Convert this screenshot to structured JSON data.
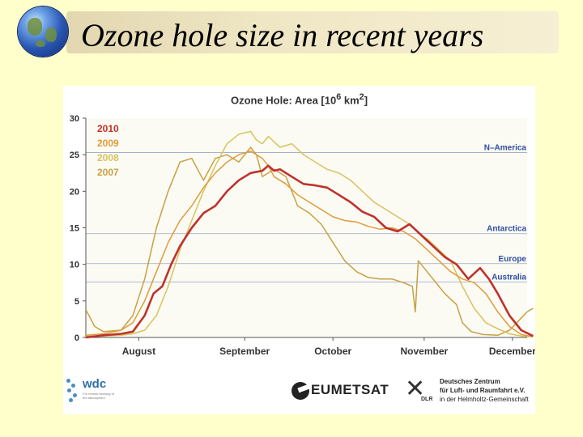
{
  "slide": {
    "title": "Ozone hole size in recent years",
    "accent": "#ffffcc"
  },
  "chart_data": {
    "type": "line",
    "title": "Ozone Hole: Area [10⁶ km²]",
    "xlabel": "",
    "ylabel": "",
    "ylim": [
      0,
      30
    ],
    "yticks": [
      0,
      5,
      10,
      15,
      20,
      25,
      30
    ],
    "xlim": [
      0,
      150
    ],
    "month_labels": [
      {
        "label": "August",
        "day": 18
      },
      {
        "label": "September",
        "day": 54
      },
      {
        "label": "October",
        "day": 84
      },
      {
        "label": "November",
        "day": 115
      },
      {
        "label": "December",
        "day": 145
      }
    ],
    "legend_position": "top-left",
    "reference_lines": [
      {
        "name": "N–America",
        "value": 25.3
      },
      {
        "name": "Antarctica",
        "value": 14.2
      },
      {
        "name": "Europe",
        "value": 10.1
      },
      {
        "name": "Australia",
        "value": 7.6
      }
    ],
    "series": [
      {
        "name": "2010",
        "color": "#c0312b",
        "width": 2.6,
        "points": [
          [
            0,
            0
          ],
          [
            6,
            0.3
          ],
          [
            12,
            0.5
          ],
          [
            16,
            0.8
          ],
          [
            20,
            3
          ],
          [
            23,
            6
          ],
          [
            26,
            7
          ],
          [
            29,
            10
          ],
          [
            32,
            12.5
          ],
          [
            36,
            15
          ],
          [
            40,
            17
          ],
          [
            44,
            18
          ],
          [
            48,
            20
          ],
          [
            52,
            21.5
          ],
          [
            56,
            22.5
          ],
          [
            60,
            22.8
          ],
          [
            62,
            23.5
          ],
          [
            64,
            22.8
          ],
          [
            66,
            23
          ],
          [
            70,
            22
          ],
          [
            74,
            21
          ],
          [
            78,
            20.8
          ],
          [
            82,
            20.5
          ],
          [
            86,
            19.5
          ],
          [
            90,
            18.5
          ],
          [
            94,
            17.2
          ],
          [
            98,
            16.5
          ],
          [
            102,
            15
          ],
          [
            106,
            14.5
          ],
          [
            110,
            15.5
          ],
          [
            114,
            14
          ],
          [
            118,
            12.5
          ],
          [
            122,
            11
          ],
          [
            126,
            10
          ],
          [
            130,
            8
          ],
          [
            134,
            9.5
          ],
          [
            137,
            8
          ],
          [
            140,
            6
          ],
          [
            144,
            3
          ],
          [
            148,
            1
          ],
          [
            152,
            0.2
          ]
        ]
      },
      {
        "name": "2009",
        "color": "#e09b3a",
        "width": 1.5,
        "points": [
          [
            0,
            0.3
          ],
          [
            6,
            0.5
          ],
          [
            12,
            1
          ],
          [
            16,
            2
          ],
          [
            20,
            5
          ],
          [
            24,
            9
          ],
          [
            28,
            13
          ],
          [
            32,
            16
          ],
          [
            36,
            18
          ],
          [
            40,
            20.5
          ],
          [
            44,
            22.5
          ],
          [
            48,
            24
          ],
          [
            52,
            25
          ],
          [
            56,
            25.5
          ],
          [
            60,
            24.5
          ],
          [
            62,
            23.5
          ],
          [
            64,
            22
          ],
          [
            68,
            21
          ],
          [
            72,
            19.5
          ],
          [
            76,
            18.5
          ],
          [
            80,
            17.5
          ],
          [
            84,
            16.5
          ],
          [
            88,
            16
          ],
          [
            92,
            15.8
          ],
          [
            96,
            15.2
          ],
          [
            100,
            14.8
          ],
          [
            104,
            15
          ],
          [
            108,
            14.5
          ],
          [
            112,
            13.5
          ],
          [
            116,
            12
          ],
          [
            120,
            10.5
          ],
          [
            124,
            9
          ],
          [
            128,
            8
          ],
          [
            132,
            7.5
          ],
          [
            136,
            6
          ],
          [
            140,
            3.5
          ],
          [
            144,
            1.5
          ],
          [
            148,
            0.4
          ],
          [
            152,
            0.1
          ]
        ]
      },
      {
        "name": "2008",
        "color": "#d9c25c",
        "width": 1.5,
        "points": [
          [
            0,
            0.2
          ],
          [
            6,
            0.2
          ],
          [
            12,
            0.3
          ],
          [
            16,
            0.5
          ],
          [
            20,
            1
          ],
          [
            24,
            3
          ],
          [
            28,
            7
          ],
          [
            32,
            12
          ],
          [
            36,
            16
          ],
          [
            40,
            20
          ],
          [
            44,
            23.5
          ],
          [
            48,
            26.5
          ],
          [
            52,
            27.8
          ],
          [
            56,
            28.2
          ],
          [
            58,
            27
          ],
          [
            60,
            26.5
          ],
          [
            62,
            27.5
          ],
          [
            66,
            26
          ],
          [
            70,
            26.5
          ],
          [
            74,
            25
          ],
          [
            78,
            24
          ],
          [
            82,
            23
          ],
          [
            86,
            22.5
          ],
          [
            90,
            21.5
          ],
          [
            94,
            20
          ],
          [
            98,
            18.5
          ],
          [
            102,
            17.5
          ],
          [
            106,
            16.5
          ],
          [
            110,
            15.5
          ],
          [
            114,
            14
          ],
          [
            116,
            13.5
          ],
          [
            120,
            12
          ],
          [
            124,
            10.5
          ],
          [
            128,
            7
          ],
          [
            132,
            4
          ],
          [
            136,
            2
          ],
          [
            140,
            1.2
          ],
          [
            144,
            0.5
          ],
          [
            148,
            0.2
          ],
          [
            152,
            0.1
          ]
        ]
      },
      {
        "name": "2007",
        "color": "#c8a042",
        "width": 1.5,
        "points": [
          [
            0,
            3.8
          ],
          [
            3,
            1.5
          ],
          [
            6,
            0.8
          ],
          [
            12,
            1
          ],
          [
            16,
            3
          ],
          [
            20,
            8
          ],
          [
            24,
            15
          ],
          [
            28,
            20
          ],
          [
            32,
            24
          ],
          [
            36,
            24.5
          ],
          [
            40,
            21.5
          ],
          [
            44,
            24.5
          ],
          [
            48,
            25
          ],
          [
            52,
            24
          ],
          [
            56,
            26
          ],
          [
            58,
            25
          ],
          [
            60,
            22
          ],
          [
            64,
            23
          ],
          [
            68,
            22
          ],
          [
            72,
            18
          ],
          [
            76,
            17
          ],
          [
            80,
            15.5
          ],
          [
            84,
            13
          ],
          [
            88,
            10.5
          ],
          [
            92,
            9
          ],
          [
            96,
            8.2
          ],
          [
            100,
            8
          ],
          [
            104,
            8
          ],
          [
            108,
            7.5
          ],
          [
            111,
            7
          ],
          [
            112,
            3.5
          ],
          [
            113,
            10.5
          ],
          [
            115,
            9.5
          ],
          [
            118,
            8
          ],
          [
            122,
            6
          ],
          [
            126,
            4.5
          ],
          [
            128,
            2
          ],
          [
            131,
            0.8
          ],
          [
            135,
            0.4
          ],
          [
            140,
            0.3
          ],
          [
            144,
            1
          ],
          [
            146,
            1.8
          ],
          [
            150,
            3.5
          ],
          [
            152,
            4
          ]
        ]
      }
    ]
  },
  "logos": {
    "wdc": {
      "name": "wdc",
      "subtitle": "Für remote sensing of the atmosphere"
    },
    "eumetsat": {
      "name": "EUMETSAT"
    },
    "dlr": {
      "abbr": "DLR",
      "line1": "Deutsches Zentrum",
      "line2": "für Luft- und Raumfahrt e.V.",
      "line3": "in der Helmholtz-Gemeinschaft"
    }
  }
}
